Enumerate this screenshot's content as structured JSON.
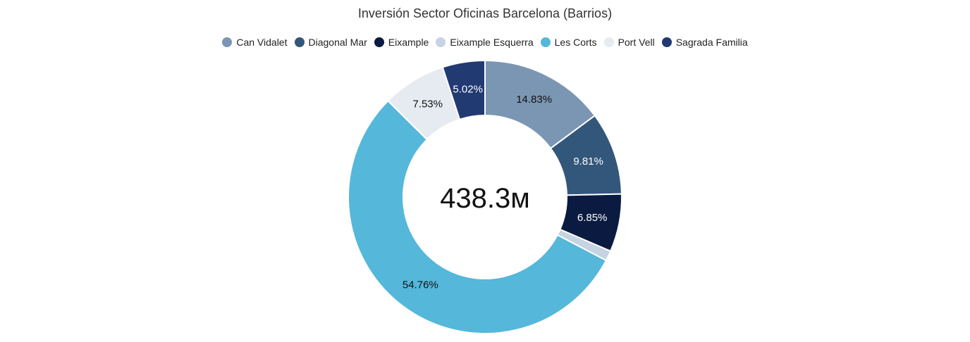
{
  "chart_data": {
    "type": "pie",
    "title": "Inversión Sector Oficinas Barcelona (Barrios)",
    "center_label": "438.3м",
    "legend_position": "top",
    "slices": [
      {
        "name": "Can Vidalet",
        "percent": 14.83,
        "label": "14.83%",
        "color": "#7b96b2",
        "label_color": "#111111"
      },
      {
        "name": "Diagonal Mar",
        "percent": 9.81,
        "label": "9.81%",
        "color": "#33577a",
        "label_color": "#ffffff"
      },
      {
        "name": "Eixample",
        "percent": 6.85,
        "label": "6.85%",
        "color": "#0b1a40",
        "label_color": "#ffffff"
      },
      {
        "name": "Eixample Esquerra",
        "percent": 1.2,
        "label": "",
        "color": "#c5d3e2",
        "label_color": "#111111"
      },
      {
        "name": "Les Corts",
        "percent": 54.76,
        "label": "54.76%",
        "color": "#55b7da",
        "label_color": "#111111"
      },
      {
        "name": "Port Vell",
        "percent": 7.53,
        "label": "7.53%",
        "color": "#e6ebf1",
        "label_color": "#111111"
      },
      {
        "name": "Sagrada Familia",
        "percent": 5.02,
        "label": "5.02%",
        "color": "#213a72",
        "label_color": "#ffffff"
      }
    ]
  }
}
